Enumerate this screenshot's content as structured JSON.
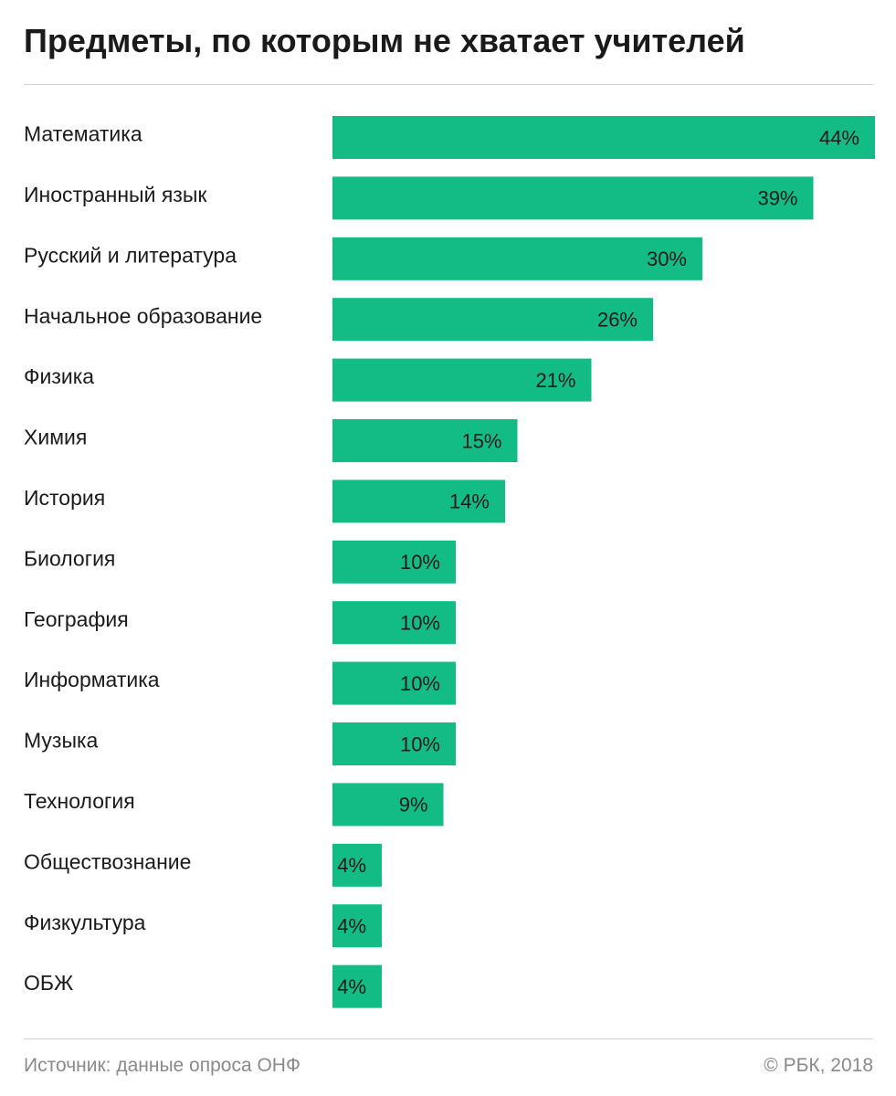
{
  "title": "Предметы, по которым не хватает учителей",
  "source": "Источник: данные опроса ОНФ",
  "credit": "© РБК, 2018",
  "colors": {
    "bar": "#13bb85",
    "text": "#1a1a1a",
    "muted": "#8a8a8a",
    "rule": "#d2d2d2"
  },
  "chart_data": {
    "type": "bar",
    "orientation": "horizontal",
    "title": "Предметы, по которым не хватает учителей",
    "categories": [
      "Математика",
      "Иностранный язык",
      "Русский и литература",
      "Начальное образование",
      "Физика",
      "Химия",
      "История",
      "Биология",
      "География",
      "Информатика",
      "Музыка",
      "Технология",
      "Обществознание",
      "Физкультура",
      "ОБЖ"
    ],
    "values": [
      44,
      39,
      30,
      26,
      21,
      15,
      14,
      10,
      10,
      10,
      10,
      9,
      4,
      4,
      4
    ],
    "labels": [
      "44%",
      "39%",
      "30%",
      "26%",
      "21%",
      "15%",
      "14%",
      "10%",
      "10%",
      "10%",
      "10%",
      "9%",
      "4%",
      "4%",
      "4%"
    ],
    "unit": "%",
    "xlim": [
      0,
      44
    ],
    "grid": false,
    "legend": "none"
  }
}
